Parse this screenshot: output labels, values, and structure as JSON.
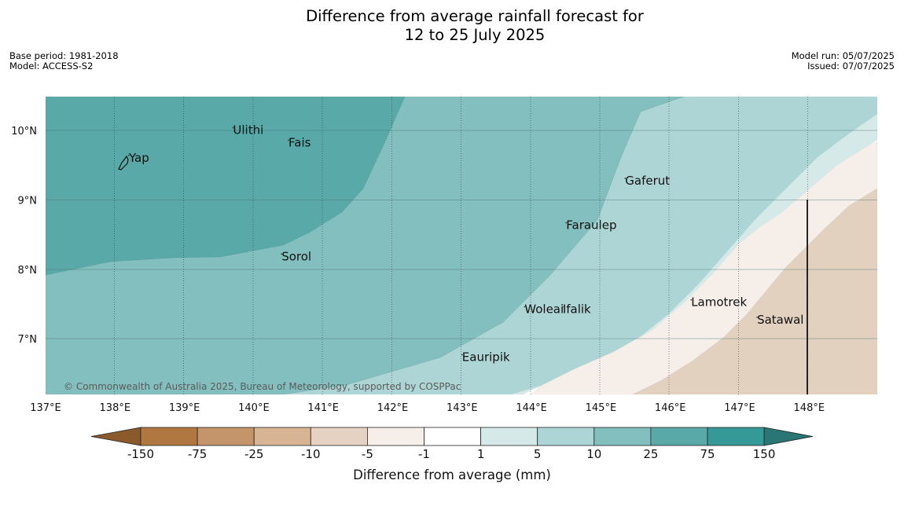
{
  "title": {
    "line1": "Difference from average rainfall forecast for",
    "line2": "12 to 25 July 2025"
  },
  "meta_left": {
    "base_period": "Base period: 1981-2018",
    "model": "Model: ACCESS-S2"
  },
  "meta_right": {
    "model_run": "Model run: 05/07/2025",
    "issued": "Issued: 07/07/2025"
  },
  "map": {
    "lon_range": [
      137,
      149
    ],
    "lat_range": [
      6.2,
      10.5
    ],
    "x_ticks": [
      "137°E",
      "138°E",
      "139°E",
      "140°E",
      "141°E",
      "142°E",
      "143°E",
      "144°E",
      "145°E",
      "146°E",
      "147°E",
      "148°E"
    ],
    "y_ticks": [
      "10°N",
      "9°N",
      "8°N",
      "7°N"
    ],
    "places": [
      {
        "name": "Yap",
        "lon": 138.2,
        "lat": 9.55
      },
      {
        "name": "Ulithi",
        "lon": 139.7,
        "lat": 9.95
      },
      {
        "name": "Fais",
        "lon": 140.5,
        "lat": 9.77
      },
      {
        "name": "Gaferut",
        "lon": 145.35,
        "lat": 9.22
      },
      {
        "name": "Faraulep",
        "lon": 144.5,
        "lat": 8.58
      },
      {
        "name": "Sorol",
        "lon": 140.4,
        "lat": 8.13
      },
      {
        "name": "Lamotrek",
        "lon": 146.3,
        "lat": 7.47
      },
      {
        "name": "Woleai",
        "lon": 143.9,
        "lat": 7.37
      },
      {
        "name": "Ifalik",
        "lon": 144.45,
        "lat": 7.37
      },
      {
        "name": "Satawal",
        "lon": 147.25,
        "lat": 7.22
      },
      {
        "name": "Eauripik",
        "lon": 143.0,
        "lat": 6.68
      }
    ],
    "copyright": "© Commonwealth of Australia 2025, Bureau of Meteorology, supported by COSPPac"
  },
  "colorbar": {
    "labels": [
      "-150",
      "-75",
      "-25",
      "-10",
      "-5",
      "-1",
      "1",
      "5",
      "10",
      "25",
      "75",
      "150"
    ],
    "colors": [
      "#8b5a2b",
      "#b07840",
      "#c4956a",
      "#d6b494",
      "#e6d2c2",
      "#f5eee9",
      "#ffffff",
      "#d6e9e9",
      "#aed5d5",
      "#84bfbf",
      "#5aa9a9",
      "#359997",
      "#2a7575"
    ],
    "label": "Difference from average (mm)"
  }
}
